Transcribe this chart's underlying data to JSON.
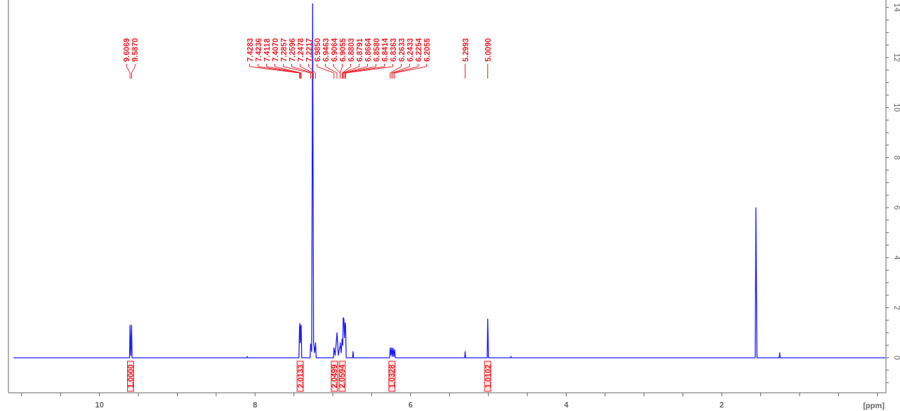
{
  "chart_data": {
    "type": "line",
    "xlabel": "[ppm]",
    "color": "#1a1aff",
    "marker": "none",
    "bands": [
      {
        "axis": "x",
        "from": 9.64,
        "to": 9.56,
        "label": "1.0000",
        "color": "#e8202a"
      },
      {
        "axis": "x",
        "from": 7.46,
        "to": 7.38,
        "label": "2.0133",
        "color": "#e8202a"
      },
      {
        "axis": "x",
        "from": 7.02,
        "to": 6.94,
        "label": "2.0499",
        "color": "#e8202a"
      },
      {
        "axis": "x",
        "from": 6.92,
        "to": 6.84,
        "label": "2.0594",
        "color": "#e8202a"
      },
      {
        "axis": "x",
        "from": 6.28,
        "to": 6.2,
        "label": "1.0328",
        "color": "#e8202a"
      },
      {
        "axis": "x",
        "from": 5.05,
        "to": 4.97,
        "label": "1.0102",
        "color": "#e8202a"
      }
    ],
    "x": [
      11.1,
      9.6129,
      9.6069,
      9.597,
      9.587,
      9.581,
      8.106,
      8.1,
      8.094,
      7.436,
      7.4283,
      7.4236,
      7.4177,
      7.4118,
      7.407,
      7.4,
      7.292,
      7.2857,
      7.272,
      7.2596,
      7.2478,
      7.234,
      7.2217,
      7.214,
      6.992,
      6.985,
      6.97,
      6.9463,
      6.93,
      6.9064,
      6.9055,
      6.893,
      6.8803,
      6.8791,
      6.872,
      6.8664,
      6.858,
      6.85,
      6.8414,
      6.8363,
      6.828,
      6.746,
      6.74,
      6.734,
      6.27,
      6.2633,
      6.253,
      6.2433,
      6.234,
      6.2254,
      6.215,
      6.2055,
      6.198,
      5.305,
      5.2993,
      5.293,
      5.016,
      5.009,
      5.005,
      5.0,
      4.716,
      4.71,
      4.704,
      1.57,
      1.562,
      1.556,
      1.548,
      1.262,
      1.256,
      1.25,
      -0.1
    ],
    "values": [
      0,
      0,
      1.3,
      0.1,
      1.3,
      0,
      0,
      0.05,
      0,
      0,
      1.2,
      1.37,
      0.6,
      1.25,
      1.3,
      0,
      0,
      0.55,
      0.25,
      14.15,
      0.6,
      0.2,
      0.6,
      0,
      0,
      0.4,
      0.1,
      1.0,
      0.1,
      0.5,
      0.6,
      0.2,
      0.75,
      0.7,
      0.5,
      1.6,
      1.55,
      0.8,
      1.4,
      1.3,
      0,
      0,
      0.25,
      0,
      0,
      0.4,
      0.1,
      0.4,
      0.05,
      0.38,
      0.05,
      0.32,
      0,
      0,
      0.25,
      0,
      0,
      1.55,
      1.0,
      0,
      0,
      0.05,
      0,
      0,
      6.0,
      3.2,
      0,
      0,
      0.2,
      0,
      0
    ],
    "xlim": [
      11.17,
      -0.11
    ],
    "ylim": [
      -1.4,
      14.3
    ],
    "xticks": [
      {
        "value": 11,
        "label": null
      },
      {
        "value": 10.5,
        "label": null
      },
      10,
      {
        "value": 9.5,
        "label": null
      },
      {
        "value": 9,
        "label": null
      },
      {
        "value": 8.5,
        "label": null
      },
      8,
      {
        "value": 7.5,
        "label": null
      },
      {
        "value": 7,
        "label": null
      },
      {
        "value": 6.5,
        "label": null
      },
      6,
      {
        "value": 5.5,
        "label": null
      },
      {
        "value": 5,
        "label": null
      },
      {
        "value": 4.5,
        "label": null
      },
      4,
      {
        "value": 3.5,
        "label": null
      },
      {
        "value": 3,
        "label": null
      },
      {
        "value": 2.5,
        "label": null
      },
      2,
      {
        "value": 1.5,
        "label": null
      },
      {
        "value": 1,
        "label": null
      },
      {
        "value": 0.5,
        "label": null
      },
      {
        "value": 0,
        "label": null
      }
    ],
    "yticks": [
      {
        "value": -1,
        "label": null
      },
      {
        "value": -0.5,
        "label": null
      },
      0,
      {
        "value": 0.5,
        "label": null
      },
      {
        "value": 1,
        "label": null
      },
      {
        "value": 1.5,
        "label": null
      },
      2,
      {
        "value": 2.5,
        "label": null
      },
      {
        "value": 3,
        "label": null
      },
      {
        "value": 3.5,
        "label": null
      },
      4,
      {
        "value": 4.5,
        "label": null
      },
      {
        "value": 5,
        "label": null
      },
      {
        "value": 5.5,
        "label": null
      },
      6,
      {
        "value": 6.5,
        "label": null
      },
      {
        "value": 7,
        "label": null
      },
      {
        "value": 7.5,
        "label": null
      },
      8,
      {
        "value": 8.5,
        "label": null
      },
      {
        "value": 9,
        "label": null
      },
      {
        "value": 9.5,
        "label": null
      },
      10,
      {
        "value": 10.5,
        "label": null
      },
      {
        "value": 11,
        "label": null
      },
      {
        "value": 11.5,
        "label": null
      },
      12,
      {
        "value": 12.5,
        "label": null
      },
      {
        "value": 13,
        "label": null
      },
      {
        "value": 13.5,
        "label": null
      },
      14
    ],
    "annotations": [
      {
        "text": "9.6069",
        "x": 9.6069
      },
      {
        "text": "9.5870",
        "x": 9.587
      },
      {
        "text": "7.4283",
        "x": 7.4283
      },
      {
        "text": "7.4236",
        "x": 7.4236
      },
      {
        "text": "7.4118",
        "x": 7.4118
      },
      {
        "text": "7.4070",
        "x": 7.407
      },
      {
        "text": "7.2857",
        "x": 7.2857
      },
      {
        "text": "7.2596",
        "x": 7.2596
      },
      {
        "text": "7.2478",
        "x": 7.2478
      },
      {
        "text": "7.2217",
        "x": 7.2217
      },
      {
        "text": "6.9850",
        "x": 6.985
      },
      {
        "text": "6.9463",
        "x": 6.9463
      },
      {
        "text": "6.9064",
        "x": 6.9064
      },
      {
        "text": "6.9055",
        "x": 6.9055
      },
      {
        "text": "6.8803",
        "x": 6.8803
      },
      {
        "text": "6.8791",
        "x": 6.8791
      },
      {
        "text": "6.8664",
        "x": 6.8664
      },
      {
        "text": "6.8580",
        "x": 6.858
      },
      {
        "text": "6.8414",
        "x": 6.8414
      },
      {
        "text": "6.8363",
        "x": 6.8363
      },
      {
        "text": "6.2633",
        "x": 6.2633
      },
      {
        "text": "6.2433",
        "x": 6.2433
      },
      {
        "text": "6.2254",
        "x": 6.2254
      },
      {
        "text": "6.2055",
        "x": 6.2055
      },
      {
        "text": "5.2993",
        "x": 5.2993
      },
      {
        "text": "5.0090",
        "x": 5.009
      }
    ]
  }
}
